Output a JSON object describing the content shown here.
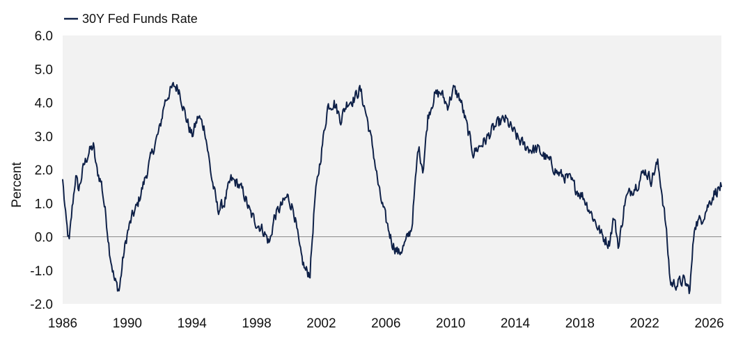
{
  "chart_data": {
    "type": "line",
    "title": "",
    "xlabel": "",
    "ylabel": "Percent",
    "xlim": [
      1986,
      2026.75
    ],
    "ylim": [
      -2.0,
      6.0
    ],
    "x_ticks": [
      "1986",
      "1990",
      "1994",
      "1998",
      "2002",
      "2006",
      "2010",
      "2014",
      "2018",
      "2022",
      "2026"
    ],
    "y_ticks": [
      "6.0",
      "5.0",
      "4.0",
      "3.0",
      "2.0",
      "1.0",
      "0.0",
      "-1.0",
      "-2.0"
    ],
    "grid": false,
    "plot_background": "#f2f2f2",
    "zero_line": true,
    "legend": {
      "position": "top-left"
    },
    "series": [
      {
        "name": "30Y Fed Funds Rate",
        "color": "#0f2148",
        "x": [
          1986.0,
          1986.2,
          1986.4,
          1986.6,
          1986.8,
          1987.0,
          1987.3,
          1987.6,
          1987.9,
          1988.1,
          1988.4,
          1988.7,
          1988.9,
          1989.2,
          1989.5,
          1989.75,
          1990.0,
          1990.3,
          1990.6,
          1990.9,
          1991.2,
          1991.6,
          1992.0,
          1992.3,
          1992.6,
          1992.9,
          1993.2,
          1993.6,
          1994.0,
          1994.4,
          1994.8,
          1995.2,
          1995.6,
          1996.0,
          1996.4,
          1996.8,
          1997.2,
          1997.6,
          1998.0,
          1998.4,
          1998.8,
          1999.1,
          1999.5,
          1999.9,
          2000.3,
          2000.7,
          2001.0,
          2001.3,
          2001.6,
          2002.0,
          2002.4,
          2002.8,
          2003.2,
          2003.6,
          2004.0,
          2004.4,
          2004.8,
          2005.2,
          2005.6,
          2006.0,
          2006.4,
          2006.8,
          2007.2,
          2007.6,
          2008.0,
          2008.3,
          2008.6,
          2009.0,
          2009.4,
          2009.8,
          2010.2,
          2010.6,
          2011.0,
          2011.4,
          2011.8,
          2012.2,
          2012.6,
          2013.0,
          2013.4,
          2013.8,
          2014.2,
          2014.6,
          2015.0,
          2015.4,
          2015.8,
          2016.2,
          2016.6,
          2017.0,
          2017.4,
          2017.8,
          2018.2,
          2018.6,
          2019.0,
          2019.4,
          2019.8,
          2020.1,
          2020.4,
          2020.8,
          2021.2,
          2021.6,
          2022.0,
          2022.4,
          2022.8,
          2023.0,
          2023.3,
          2023.6,
          2024.0,
          2024.4,
          2024.8,
          2025.1,
          2025.5,
          2025.9,
          2026.3,
          2026.75
        ],
        "values": [
          1.7,
          0.5,
          -0.2,
          0.9,
          1.8,
          1.4,
          2.1,
          2.5,
          2.7,
          2.0,
          1.6,
          0.5,
          -0.4,
          -1.3,
          -1.6,
          -0.6,
          0.1,
          0.6,
          0.9,
          1.4,
          1.9,
          2.6,
          3.2,
          4.0,
          4.3,
          4.5,
          4.4,
          3.6,
          3.0,
          3.6,
          3.2,
          1.8,
          0.8,
          1.0,
          1.7,
          1.6,
          1.3,
          0.7,
          0.4,
          0.2,
          -0.2,
          0.6,
          0.9,
          1.2,
          0.8,
          -0.5,
          -1.0,
          -1.1,
          1.1,
          2.5,
          3.9,
          4.0,
          3.5,
          4.0,
          4.1,
          4.4,
          3.6,
          2.6,
          1.3,
          0.5,
          -0.2,
          -0.5,
          -0.2,
          0.3,
          2.7,
          2.0,
          3.6,
          4.2,
          4.3,
          3.9,
          4.4,
          4.1,
          3.3,
          2.5,
          2.7,
          2.9,
          3.2,
          3.4,
          3.5,
          3.2,
          2.9,
          2.7,
          2.6,
          2.6,
          2.4,
          2.2,
          1.9,
          1.8,
          1.7,
          1.4,
          1.2,
          0.8,
          0.4,
          0.0,
          -0.2,
          0.6,
          -0.3,
          1.1,
          1.4,
          1.6,
          2.0,
          1.7,
          2.2,
          1.6,
          0.4,
          -1.4,
          -1.4,
          -1.3,
          -1.6,
          0.4,
          0.5,
          0.9,
          1.3,
          1.5
        ]
      }
    ]
  }
}
